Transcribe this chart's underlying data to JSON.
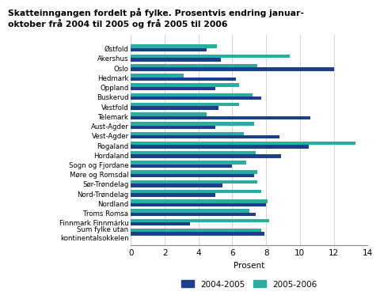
{
  "title_line1": "Skatteinngangen fordelt på fylke. Prosentvis endring januar-",
  "title_line2": "oktober frå 2004 til 2005 og frå 2005 til 2006",
  "categories": [
    "Østfold",
    "Akershus",
    "Oslo",
    "Hedmark",
    "Oppland",
    "Buskerud",
    "Vestfold",
    "Telemark",
    "Aust-Agder",
    "Vest-Agder",
    "Rogaland",
    "Hordaland",
    "Sogn og Fjordane",
    "Møre og Romsdal",
    "Sør-Trøndelag",
    "Nord-Trøndelag",
    "Nordland",
    "Troms Romsa",
    "Finnmark Finnmárku",
    "Sum fylke utan\nkontinentalsokkelen"
  ],
  "values_2004_2005": [
    4.5,
    5.3,
    12.0,
    6.2,
    5.0,
    7.7,
    5.2,
    10.6,
    5.0,
    8.8,
    10.5,
    8.9,
    6.0,
    7.3,
    5.4,
    5.0,
    8.0,
    7.4,
    3.5,
    7.9
  ],
  "values_2005_2006": [
    5.1,
    9.4,
    7.5,
    3.1,
    6.4,
    7.2,
    6.4,
    4.5,
    7.3,
    6.7,
    13.3,
    7.4,
    6.8,
    7.5,
    7.5,
    7.7,
    8.1,
    7.0,
    8.2,
    7.7
  ],
  "color_2004_2005": "#1b3f8b",
  "color_2005_2006": "#2aada0",
  "xlabel": "Prosent",
  "xlim": [
    0,
    14
  ],
  "xticks": [
    0,
    2,
    4,
    6,
    8,
    10,
    12,
    14
  ],
  "legend_labels": [
    "2004-2005",
    "2005-2006"
  ],
  "background_color": "#ffffff",
  "grid_color": "#d0d0d0"
}
